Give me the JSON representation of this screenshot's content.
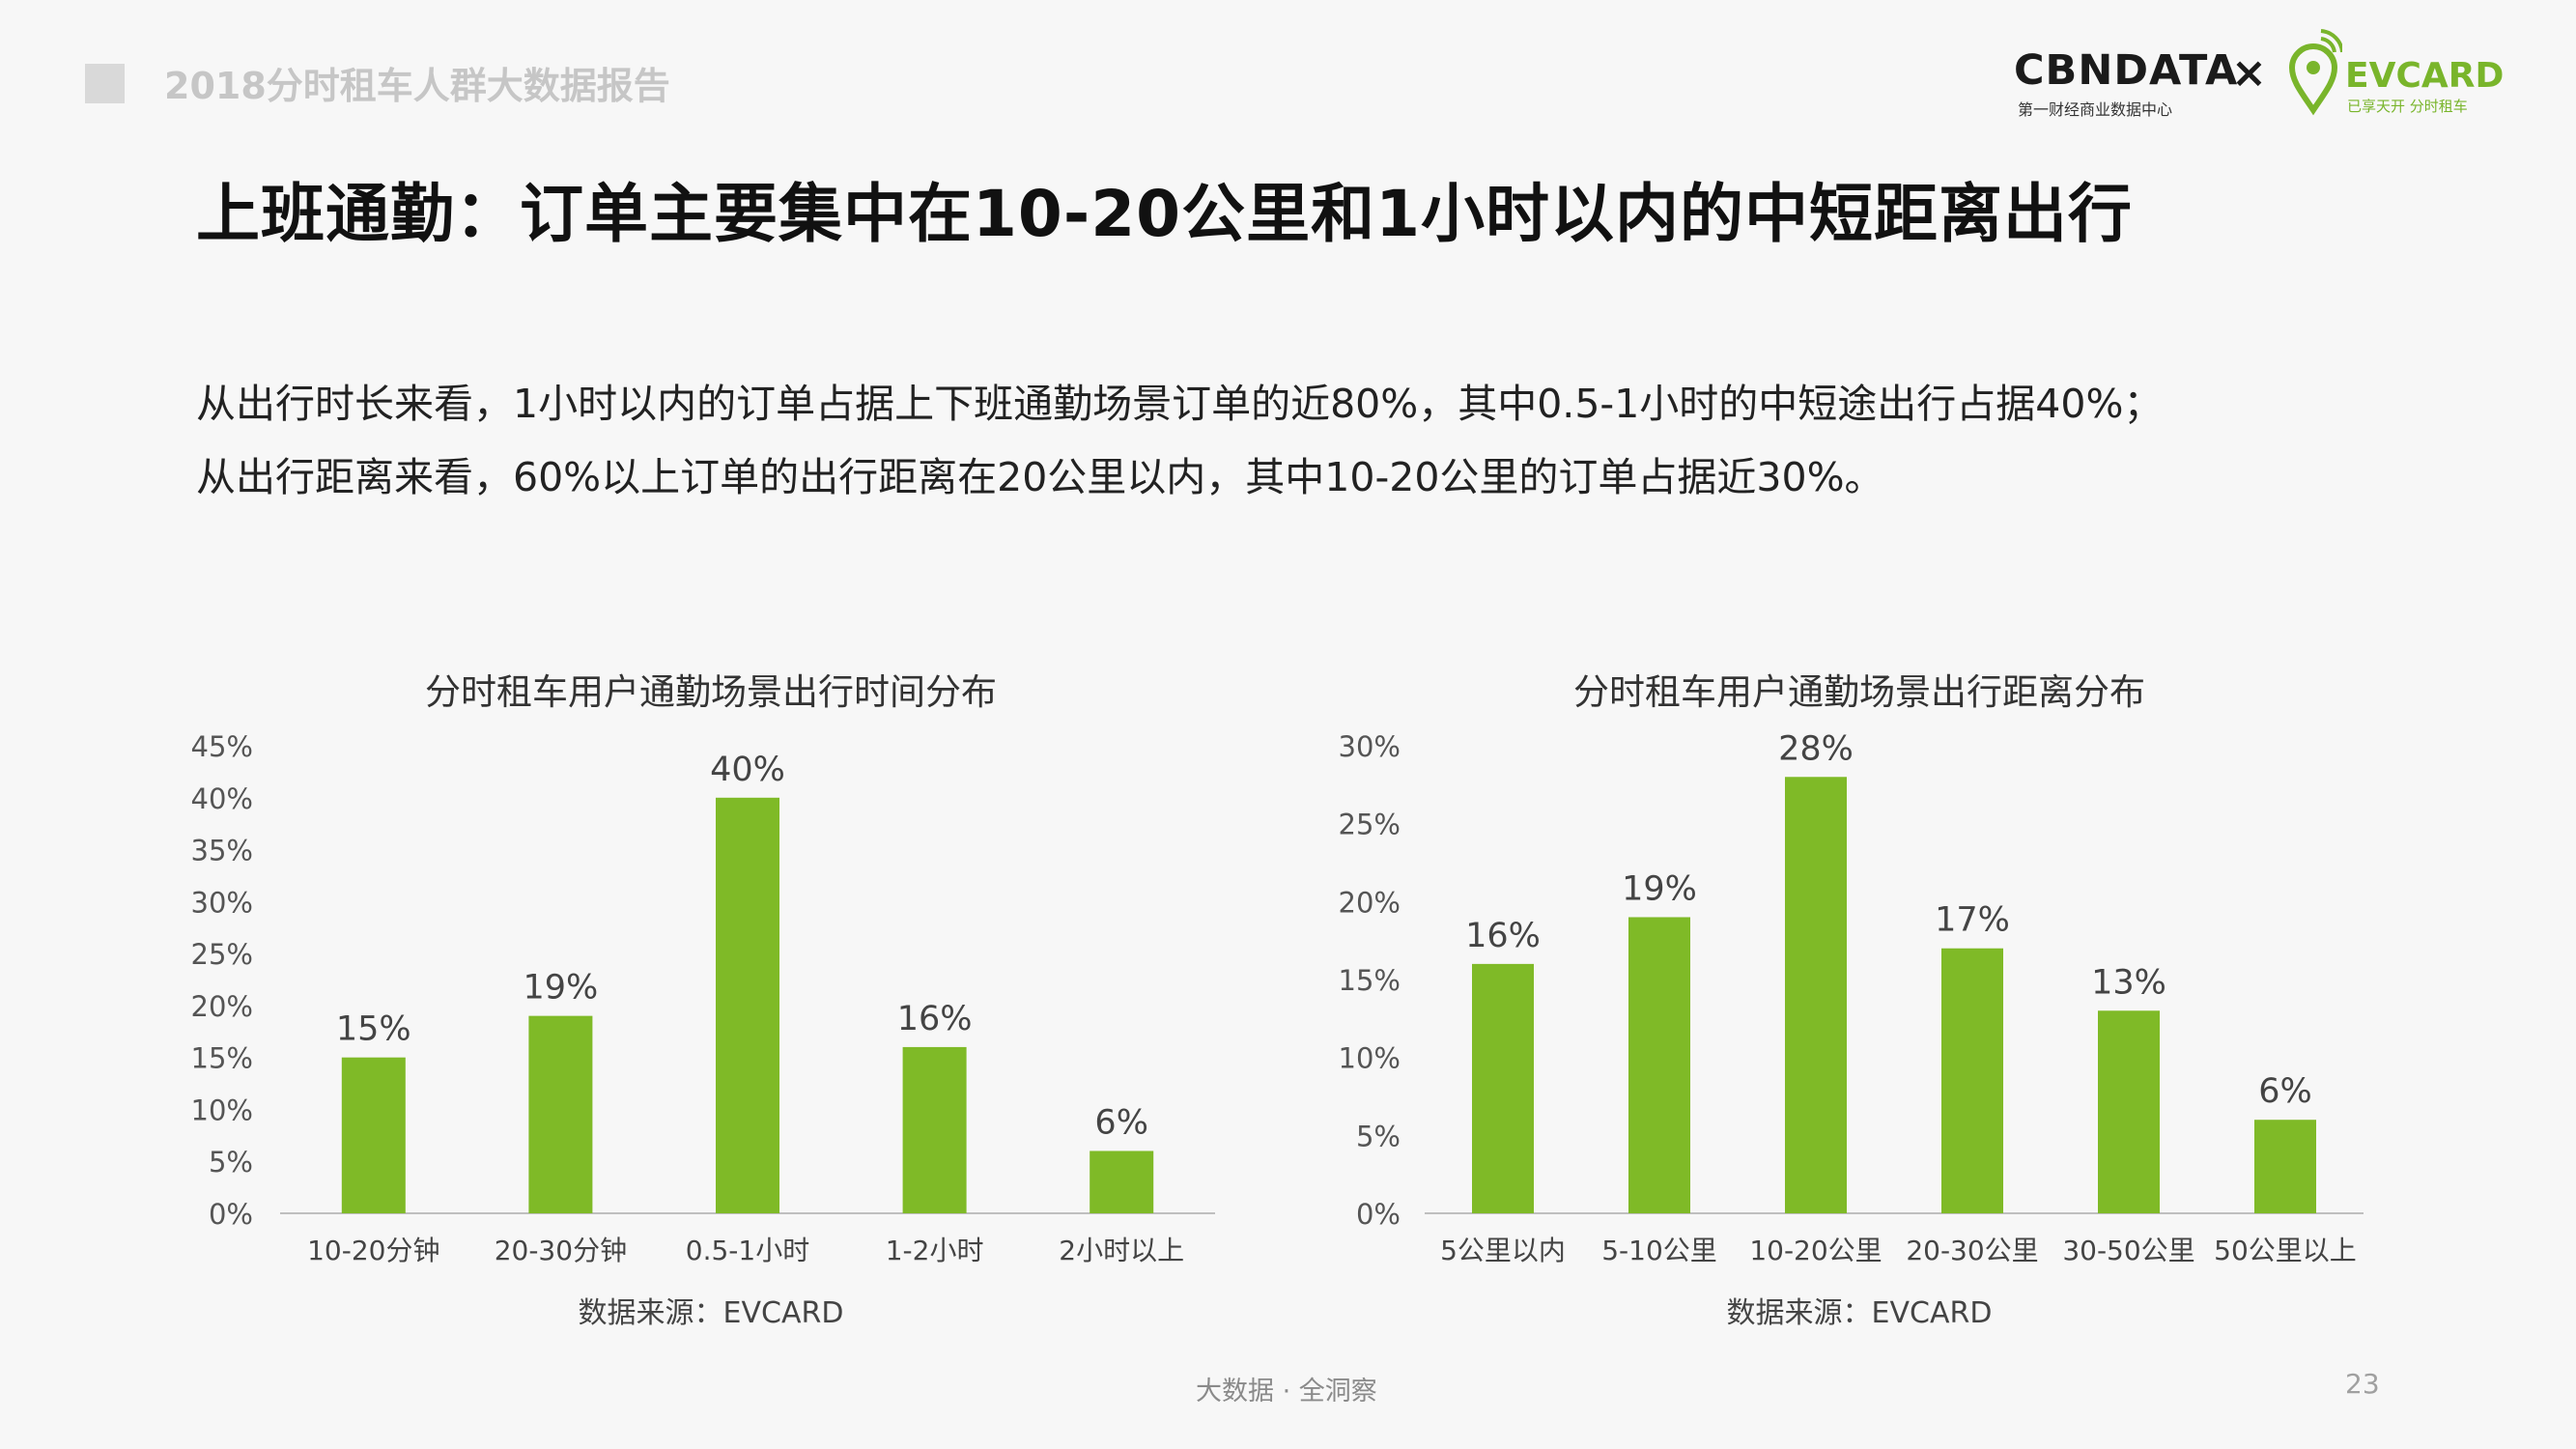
{
  "header": {
    "report_title": "2018分时租车人群大数据报告"
  },
  "logos": {
    "cbn_name": "CBNDATA",
    "cbn_subtitle": "第一财经商业数据中心",
    "times_sign": "×",
    "evcard_name": "EVCARD",
    "evcard_subtitle": "已享天开 分时租车"
  },
  "title": "上班通勤：订单主要集中在10-20公里和1小时以内的中短距离出行",
  "description": {
    "line1": "从出行时长来看，1小时以内的订单占据上下班通勤场景订单的近80%，其中0.5-1小时的中短途出行占据40%；",
    "line2": "从出行距离来看，60%以上订单的出行距离在20公里以内，其中10-20公里的订单占据近30%。"
  },
  "footer": {
    "slogan": "大数据 · 全洞察",
    "page_number": "23"
  },
  "colors": {
    "bar": "#7fba27",
    "axis": "#bfbfbf",
    "logo_green": "#79b52b"
  },
  "chart_data": [
    {
      "type": "bar",
      "title": "分时租车用户通勤场景出行时间分布",
      "source": "数据来源：EVCARD",
      "categories": [
        "10-20分钟",
        "20-30分钟",
        "0.5-1小时",
        "1-2小时",
        "2小时以上"
      ],
      "values": [
        15,
        19,
        40,
        16,
        6
      ],
      "data_labels": [
        "15%",
        "19%",
        "40%",
        "16%",
        "6%"
      ],
      "y_ticks": [
        "0%",
        "5%",
        "10%",
        "15%",
        "20%",
        "25%",
        "30%",
        "35%",
        "40%",
        "45%"
      ],
      "ylim": [
        0,
        45
      ],
      "xlabel": "",
      "ylabel": "",
      "grid": false
    },
    {
      "type": "bar",
      "title": "分时租车用户通勤场景出行距离分布",
      "source": "数据来源：EVCARD",
      "categories": [
        "5公里以内",
        "5-10公里",
        "10-20公里",
        "20-30公里",
        "30-50公里",
        "50公里以上"
      ],
      "values": [
        16,
        19,
        28,
        17,
        13,
        6
      ],
      "data_labels": [
        "16%",
        "19%",
        "28%",
        "17%",
        "13%",
        "6%"
      ],
      "y_ticks": [
        "0%",
        "5%",
        "10%",
        "15%",
        "20%",
        "25%",
        "30%"
      ],
      "ylim": [
        0,
        30
      ],
      "xlabel": "",
      "ylabel": "",
      "grid": false
    }
  ]
}
